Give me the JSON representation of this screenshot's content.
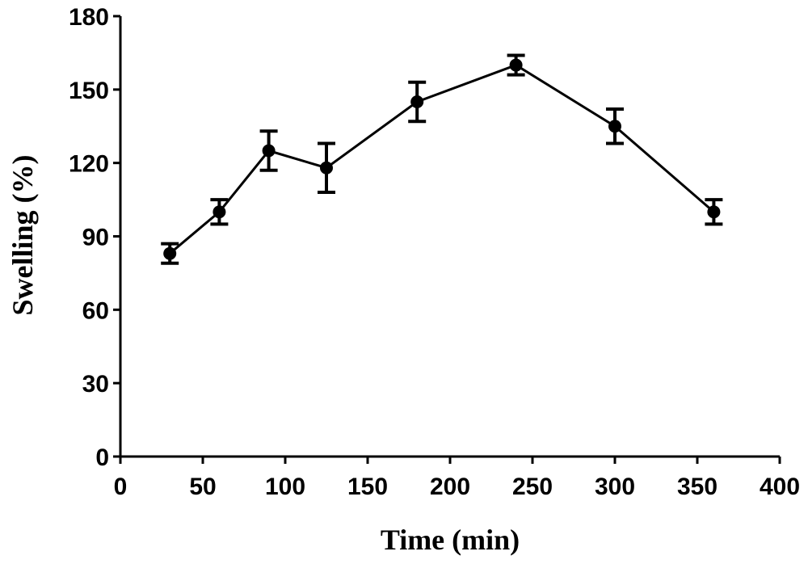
{
  "chart_data": {
    "type": "line",
    "title": "",
    "xlabel": "Time (min)",
    "ylabel": "Swelling (%)",
    "xlim": [
      0,
      400
    ],
    "ylim": [
      0,
      180
    ],
    "xticks": [
      0,
      50,
      100,
      150,
      200,
      250,
      300,
      350,
      400
    ],
    "yticks": [
      0,
      30,
      60,
      90,
      120,
      150,
      180
    ],
    "grid": false,
    "series": [
      {
        "x": [
          30,
          60,
          90,
          125,
          180,
          240,
          300,
          360
        ],
        "y": [
          83,
          100,
          125,
          118,
          145,
          160,
          135,
          100
        ],
        "error": [
          4,
          5,
          8,
          10,
          8,
          4,
          7,
          5
        ]
      }
    ]
  }
}
